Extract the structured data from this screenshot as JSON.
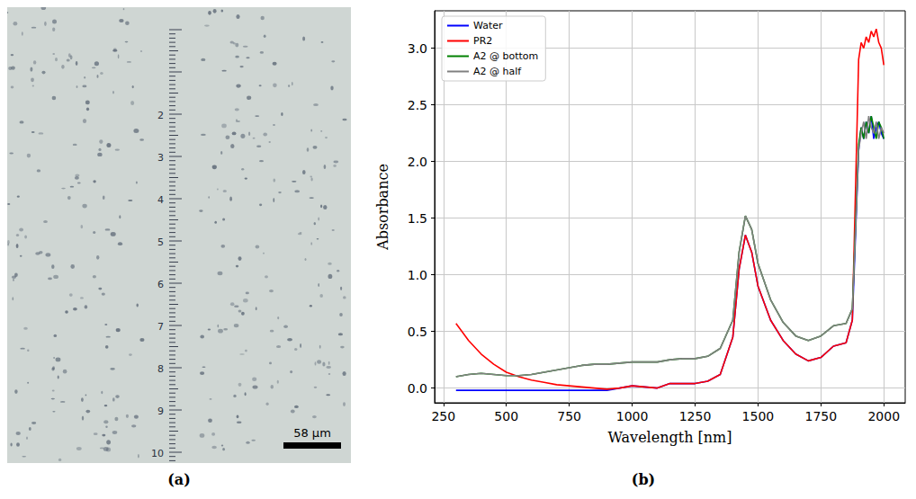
{
  "image_panel": {
    "label": "(a)",
    "scale_bar": "58 µm",
    "ruler_labels": [
      2,
      3,
      4,
      5,
      6,
      7,
      8,
      9,
      10
    ]
  },
  "chart_data": {
    "type": "line",
    "panel_label": "(b)",
    "x_label": "Wavelength [nm]",
    "y_label": "Absorbance",
    "x": [
      300,
      350,
      400,
      450,
      500,
      550,
      600,
      650,
      700,
      750,
      800,
      850,
      900,
      950,
      1000,
      1050,
      1100,
      1150,
      1200,
      1250,
      1300,
      1350,
      1400,
      1425,
      1450,
      1475,
      1500,
      1550,
      1600,
      1650,
      1700,
      1750,
      1800,
      1850,
      1875,
      1900,
      1910,
      1920,
      1930,
      1940,
      1950,
      1960,
      1970,
      1980,
      1990,
      2000
    ],
    "series": [
      {
        "name": "Water",
        "color": "#0000ff",
        "values": [
          -0.02,
          -0.02,
          -0.02,
          -0.02,
          -0.02,
          -0.02,
          -0.02,
          -0.02,
          -0.02,
          -0.02,
          -0.02,
          -0.02,
          -0.02,
          0.0,
          0.02,
          0.01,
          0.0,
          0.04,
          0.04,
          0.04,
          0.06,
          0.12,
          0.45,
          1.05,
          1.35,
          1.2,
          0.9,
          0.6,
          0.42,
          0.3,
          0.24,
          0.27,
          0.37,
          0.4,
          0.6,
          2.1,
          2.3,
          2.2,
          2.35,
          2.25,
          2.4,
          2.2,
          2.3,
          2.35,
          2.25,
          2.2
        ]
      },
      {
        "name": "PR2",
        "color": "#ff0000",
        "values": [
          0.57,
          0.42,
          0.3,
          0.21,
          0.14,
          0.1,
          0.07,
          0.05,
          0.03,
          0.02,
          0.01,
          0.0,
          -0.01,
          0.0,
          0.02,
          0.01,
          0.0,
          0.04,
          0.04,
          0.04,
          0.06,
          0.12,
          0.45,
          1.05,
          1.35,
          1.2,
          0.9,
          0.6,
          0.42,
          0.3,
          0.24,
          0.27,
          0.37,
          0.4,
          0.6,
          2.9,
          3.05,
          3.0,
          3.1,
          3.05,
          3.15,
          3.1,
          3.17,
          3.05,
          3.0,
          2.85
        ]
      },
      {
        "name": "A2 @ bottom",
        "color": "#008000",
        "values": [
          0.1,
          0.12,
          0.13,
          0.12,
          0.11,
          0.11,
          0.12,
          0.14,
          0.16,
          0.18,
          0.2,
          0.21,
          0.21,
          0.22,
          0.23,
          0.23,
          0.23,
          0.25,
          0.26,
          0.26,
          0.28,
          0.35,
          0.6,
          1.2,
          1.52,
          1.4,
          1.1,
          0.78,
          0.58,
          0.46,
          0.42,
          0.46,
          0.55,
          0.57,
          0.7,
          2.15,
          2.3,
          2.2,
          2.35,
          2.25,
          2.4,
          2.3,
          2.2,
          2.35,
          2.3,
          2.2
        ]
      },
      {
        "name": "A2 @ half",
        "color": "#808080",
        "values": [
          0.1,
          0.12,
          0.13,
          0.12,
          0.11,
          0.11,
          0.12,
          0.14,
          0.16,
          0.18,
          0.2,
          0.21,
          0.21,
          0.22,
          0.23,
          0.23,
          0.23,
          0.25,
          0.26,
          0.26,
          0.28,
          0.35,
          0.6,
          1.2,
          1.52,
          1.4,
          1.1,
          0.78,
          0.58,
          0.46,
          0.42,
          0.46,
          0.55,
          0.57,
          0.7,
          2.1,
          2.25,
          2.35,
          2.2,
          2.4,
          2.3,
          2.25,
          2.35,
          2.2,
          2.3,
          2.25
        ]
      }
    ],
    "xlim": [
      215,
      2085
    ],
    "ylim": [
      -0.13,
      3.33
    ],
    "xticks": [
      250,
      500,
      750,
      1000,
      1250,
      1500,
      1750,
      2000
    ],
    "yticks": [
      {
        "value": 0,
        "label": "0.0"
      },
      0.5,
      {
        "value": 1,
        "label": "1.0"
      },
      1.5,
      {
        "value": 2,
        "label": "2.0"
      },
      2.5,
      {
        "value": 3,
        "label": "3.0"
      }
    ],
    "grid": true,
    "legend": "upper left"
  }
}
